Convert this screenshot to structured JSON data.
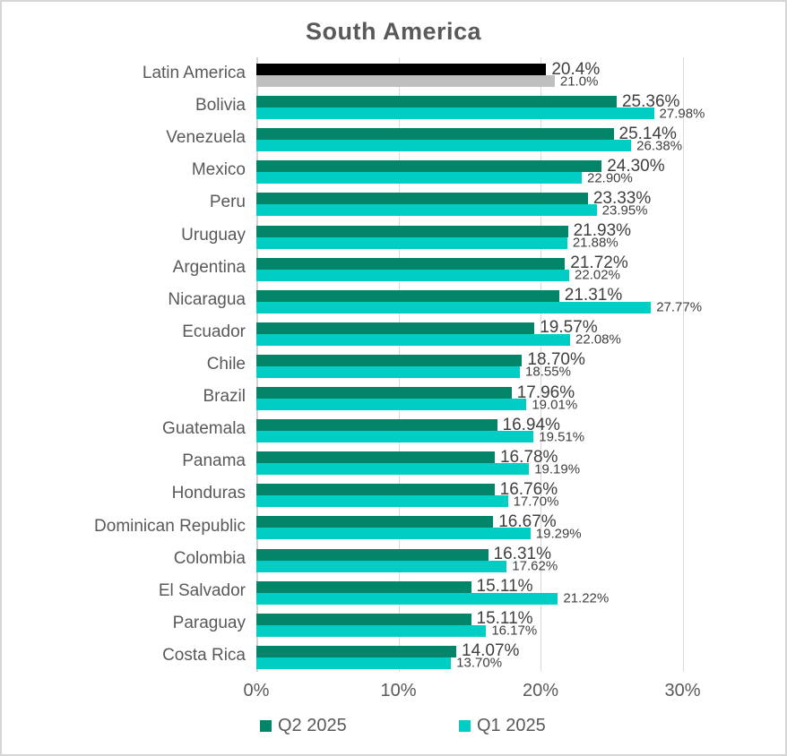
{
  "window": {
    "background": "#ffffff",
    "border_color": "#d6d6d6"
  },
  "chart_data": {
    "type": "bar",
    "orientation": "horizontal",
    "title": "South America",
    "title_color": "#595959",
    "categories": [
      "Latin America",
      "Bolivia",
      "Venezuela",
      "Mexico",
      "Peru",
      "Uruguay",
      "Argentina",
      "Nicaragua",
      "Ecuador",
      "Chile",
      "Brazil",
      "Guatemala",
      "Panama",
      "Honduras",
      "Dominican Republic",
      "Colombia",
      "El Salvador",
      "Paraguay",
      "Costa Rica"
    ],
    "series": [
      {
        "name": "Q2 2025",
        "color": "#028568",
        "values": [
          20.4,
          25.36,
          25.14,
          24.3,
          23.33,
          21.93,
          21.72,
          21.31,
          19.57,
          18.7,
          17.96,
          16.94,
          16.78,
          16.76,
          16.67,
          16.31,
          15.11,
          15.11,
          14.07
        ],
        "labels": [
          "20.4%",
          "25.36%",
          "25.14%",
          "24.30%",
          "23.33%",
          "21.93%",
          "21.72%",
          "21.31%",
          "19.57%",
          "18.70%",
          "17.96%",
          "16.94%",
          "16.78%",
          "16.76%",
          "16.67%",
          "16.31%",
          "15.11%",
          "15.11%",
          "14.07%"
        ]
      },
      {
        "name": "Q1 2025",
        "color": "#00CEC5",
        "values": [
          21.0,
          27.98,
          26.38,
          22.9,
          23.95,
          21.88,
          22.02,
          27.77,
          22.08,
          18.55,
          19.01,
          19.51,
          19.19,
          17.7,
          19.29,
          17.62,
          21.22,
          16.17,
          13.7
        ],
        "labels": [
          "21.0%",
          "27.98%",
          "26.38%",
          "22.90%",
          "23.95%",
          "21.88%",
          "22.02%",
          "27.77%",
          "22.08%",
          "18.55%",
          "19.01%",
          "19.51%",
          "19.19%",
          "17.70%",
          "19.29%",
          "17.62%",
          "21.22%",
          "16.17%",
          "13.70%"
        ]
      }
    ],
    "row_color_overrides": {
      "0": [
        "#000000",
        "#BFBFBF"
      ]
    },
    "x_ticks": [
      "0%",
      "10%",
      "20%",
      "30%"
    ],
    "x_tick_values": [
      0,
      10,
      20,
      30
    ],
    "xlim": [
      0,
      32.3
    ],
    "grid": true,
    "grid_color": "#d9d9d9",
    "axis_text_color": "#595959",
    "data_label_color": "#3f3f3f",
    "legend_position": "bottom"
  }
}
